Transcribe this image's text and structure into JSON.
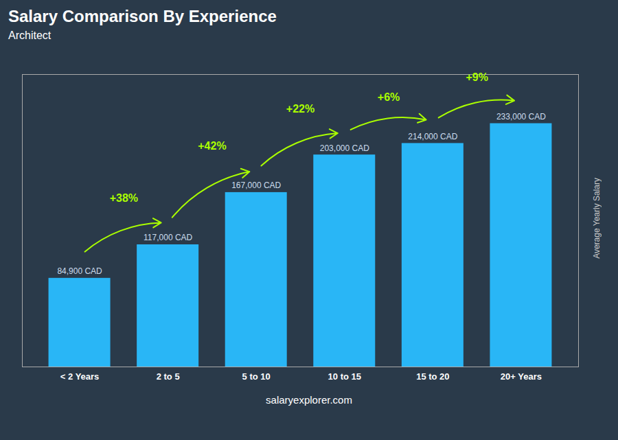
{
  "chart_data": {
    "type": "bar",
    "title": "Salary Comparison By Experience",
    "subtitle": "Architect",
    "ylabel": "Average Yearly Salary",
    "categories": [
      "< 2 Years",
      "2 to 5",
      "5 to 10",
      "10 to 15",
      "15 to 20",
      "20+ Years"
    ],
    "values": [
      84900,
      117000,
      167000,
      203000,
      214000,
      233000
    ],
    "value_labels": [
      "84,900 CAD",
      "117,000 CAD",
      "167,000 CAD",
      "203,000 CAD",
      "214,000 CAD",
      "233,000 CAD"
    ],
    "data_labels": true,
    "color": "#29b6f6",
    "ylim": [
      0,
      280000
    ],
    "yticks": [],
    "tick_labels": "x",
    "grid": false,
    "annotations": [
      {
        "text": "+38%",
        "color": "#aaff00"
      },
      {
        "text": "+42%",
        "color": "#aaff00"
      },
      {
        "text": "+22%",
        "color": "#aaff00"
      },
      {
        "text": "+6%",
        "color": "#aaff00"
      },
      {
        "text": "+9%",
        "color": "#aaff00"
      }
    ],
    "footer": "salaryexplorer.com"
  }
}
